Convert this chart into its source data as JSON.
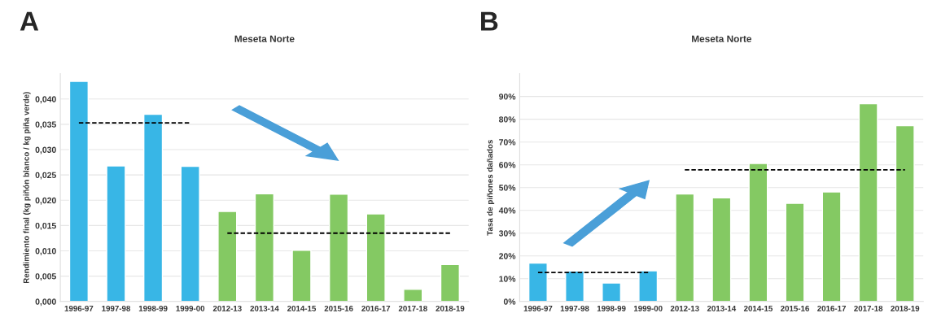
{
  "chart_data": [
    {
      "type": "bar",
      "title": "Meseta Norte",
      "ylabel": "Rendimiento final (kg piñón blanco / kg piña verde)",
      "annotations": [
        "A"
      ],
      "categories": [
        "1996-97",
        "1997-98",
        "1998-99",
        "1999-00",
        "2012-13",
        "2013-14",
        "2014-15",
        "2015-16",
        "2016-17",
        "2017-18",
        "2018-19"
      ],
      "series": [
        {
          "values": [
            0.0435,
            0.0268,
            0.037,
            0.0267,
            0.0178,
            0.0213,
            0.0101,
            0.0212,
            0.0173,
            0.0024,
            0.0073
          ],
          "colors": [
            "#38b6e6",
            "#38b6e6",
            "#38b6e6",
            "#38b6e6",
            "#84c963",
            "#84c963",
            "#84c963",
            "#84c963",
            "#84c963",
            "#84c963",
            "#84c963"
          ]
        },
        {
          "type": "line",
          "line_style": "dashed",
          "color": "#000000",
          "values": [
            0.0353,
            0.0353,
            0.0353,
            0.0353,
            null,
            null,
            null,
            null,
            null,
            null,
            null
          ]
        },
        {
          "type": "line",
          "line_style": "dashed",
          "color": "#000000",
          "values": [
            null,
            null,
            null,
            null,
            0.0135,
            0.0135,
            0.0135,
            0.0135,
            0.0135,
            0.0135,
            0.0135
          ]
        }
      ],
      "ylim": [
        0,
        0.045
      ],
      "yticks": [
        {
          "value": 0,
          "label": "0,000"
        },
        {
          "value": 0.005,
          "label": "0,005"
        },
        {
          "value": 0.01,
          "label": "0,010"
        },
        {
          "value": 0.015,
          "label": "0,015"
        },
        {
          "value": 0.02,
          "label": "0,020"
        },
        {
          "value": 0.025,
          "label": "0,025"
        },
        {
          "value": 0.03,
          "label": "0,030"
        },
        {
          "value": 0.035,
          "label": "0,035"
        },
        {
          "value": 0.04,
          "label": "0,040"
        }
      ],
      "grid": "y",
      "legend": false
    },
    {
      "type": "bar",
      "title": "Meseta Norte",
      "ylabel": "Tasa de piñones dañados",
      "annotations": [
        "B"
      ],
      "categories": [
        "1996-97",
        "1997-98",
        "1998-99",
        "1999-00",
        "2012-13",
        "2013-14",
        "2014-15",
        "2015-16",
        "2016-17",
        "2017-18",
        "2018-19"
      ],
      "series": [
        {
          "values": [
            16.9,
            13.4,
            8.1,
            13.5,
            47.2,
            45.5,
            60.6,
            43.1,
            48.1,
            86.8,
            77.2
          ],
          "colors": [
            "#38b6e6",
            "#38b6e6",
            "#38b6e6",
            "#38b6e6",
            "#84c963",
            "#84c963",
            "#84c963",
            "#84c963",
            "#84c963",
            "#84c963",
            "#84c963"
          ]
        },
        {
          "type": "line",
          "line_style": "dashed",
          "color": "#000000",
          "values": [
            12.7,
            12.7,
            12.7,
            12.7,
            null,
            null,
            null,
            null,
            null,
            null,
            null
          ]
        },
        {
          "type": "line",
          "line_style": "dashed",
          "color": "#000000",
          "values": [
            null,
            null,
            null,
            null,
            57.8,
            57.8,
            57.8,
            57.8,
            57.8,
            57.8,
            57.8
          ]
        }
      ],
      "ylim": [
        0,
        100
      ],
      "yticks": [
        {
          "value": 0,
          "label": "0%"
        },
        {
          "value": 10,
          "label": "10%"
        },
        {
          "value": 20,
          "label": "20%"
        },
        {
          "value": 30,
          "label": "30%"
        },
        {
          "value": 40,
          "label": "40%"
        },
        {
          "value": 50,
          "label": "50%"
        },
        {
          "value": 60,
          "label": "60%"
        },
        {
          "value": 70,
          "label": "70%"
        },
        {
          "value": 80,
          "label": "80%"
        },
        {
          "value": 90,
          "label": "90%"
        }
      ],
      "grid": "y",
      "legend": false
    }
  ]
}
